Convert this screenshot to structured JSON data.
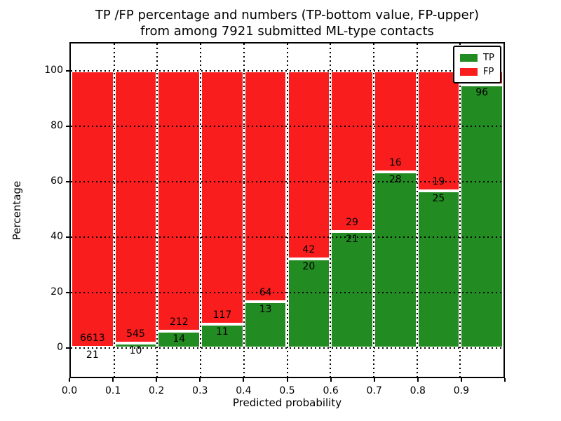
{
  "figure": {
    "title_line1": "TP /FP percentage and numbers (TP-bottom value, FP-upper)",
    "title_line2": "from among 7921 submitted ML-type contacts",
    "xlabel": "Predicted probability",
    "ylabel": "Percentage"
  },
  "legend": {
    "position": "upper-right",
    "items": [
      {
        "label": "TP",
        "color": "#228b22"
      },
      {
        "label": "FP",
        "color": "#fa1d1d"
      }
    ]
  },
  "chart_data": {
    "type": "bar",
    "subtype": "stacked-percentage-histogram",
    "title": "TP /FP percentage and numbers (TP-bottom value, FP-upper) from among 7921 submitted ML-type contacts",
    "xlabel": "Predicted probability",
    "ylabel": "Percentage",
    "total_contacts": 7921,
    "x_tick_labels": [
      "0.0",
      "0.1",
      "0.2",
      "0.3",
      "0.4",
      "0.5",
      "0.6",
      "0.7",
      "0.8",
      "0.9"
    ],
    "y_tick_values": [
      0,
      20,
      40,
      60,
      80,
      100
    ],
    "xlim": [
      0.0,
      1.0
    ],
    "ylim_display": [
      -10.3,
      110
    ],
    "grid": "black dotted, vertical every 0.1, horizontal every 20",
    "colors": {
      "tp": "#228b22",
      "fp": "#fa1d1d"
    },
    "series": [
      {
        "name": "TP",
        "role": "bottom",
        "color": "#228b22"
      },
      {
        "name": "FP",
        "role": "top",
        "color": "#fa1d1d"
      }
    ],
    "bins": [
      {
        "x_start": 0.0,
        "x_end": 0.1,
        "tp": 21,
        "fp": 6613,
        "tp_pct": 0.32
      },
      {
        "x_start": 0.1,
        "x_end": 0.2,
        "tp": 10,
        "fp": 545,
        "tp_pct": 1.8
      },
      {
        "x_start": 0.2,
        "x_end": 0.3,
        "tp": 14,
        "fp": 212,
        "tp_pct": 6.19
      },
      {
        "x_start": 0.3,
        "x_end": 0.4,
        "tp": 11,
        "fp": 117,
        "tp_pct": 8.59
      },
      {
        "x_start": 0.4,
        "x_end": 0.5,
        "tp": 13,
        "fp": 64,
        "tp_pct": 16.88
      },
      {
        "x_start": 0.5,
        "x_end": 0.6,
        "tp": 20,
        "fp": 42,
        "tp_pct": 32.26
      },
      {
        "x_start": 0.6,
        "x_end": 0.7,
        "tp": 21,
        "fp": 29,
        "tp_pct": 42.0
      },
      {
        "x_start": 0.7,
        "x_end": 0.8,
        "tp": 28,
        "fp": 16,
        "tp_pct": 63.64
      },
      {
        "x_start": 0.8,
        "x_end": 0.9,
        "tp": 25,
        "fp": 19,
        "tp_pct": 56.82
      },
      {
        "x_start": 0.9,
        "x_end": 1.0,
        "tp": 96,
        "fp": null,
        "tp_pct": 95.0,
        "fp_label_hidden_by_legend": true
      }
    ]
  }
}
